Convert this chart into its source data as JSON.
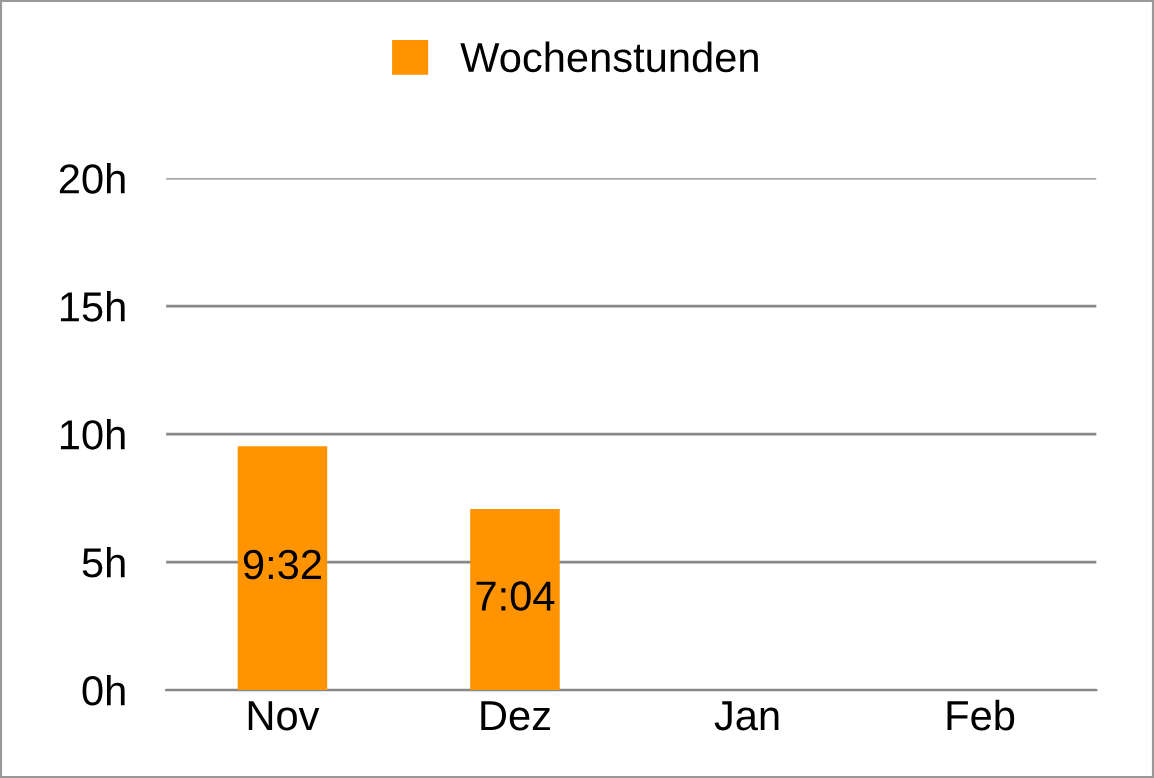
{
  "chart_data": {
    "type": "bar",
    "categories": [
      "Nov",
      "Dez",
      "Jan",
      "Feb"
    ],
    "series": [
      {
        "name": "Wochenstunden",
        "color": "#ff9300",
        "values": [
          9.53,
          7.07,
          null,
          null
        ],
        "value_labels": [
          "9:32",
          "7:04",
          null,
          null
        ]
      }
    ],
    "ylim": [
      0,
      20
    ],
    "yticks": [
      {
        "value": 0,
        "label": "0h"
      },
      {
        "value": 5,
        "label": "5h"
      },
      {
        "value": 10,
        "label": "10h"
      },
      {
        "value": 15,
        "label": "15h"
      },
      {
        "value": 20,
        "label": "20h"
      }
    ],
    "grid": "y",
    "legend": "top"
  }
}
